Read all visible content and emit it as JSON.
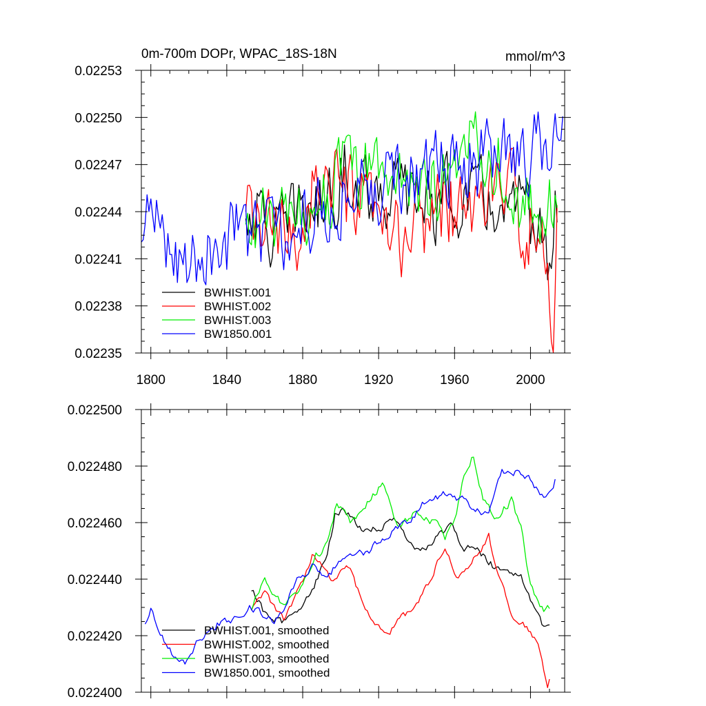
{
  "chart_data": [
    {
      "type": "line",
      "title": "0m-700m DOPr, WPAC_18S-18N",
      "units": "mmol/m^3",
      "xlim": [
        1795,
        2018
      ],
      "ylim": [
        0.02235,
        0.02253
      ],
      "x_ticks": [
        1800,
        1840,
        1880,
        1920,
        1960,
        2000
      ],
      "x_tick_labels": [
        "1800",
        "1840",
        "1880",
        "1920",
        "1960",
        "2000"
      ],
      "y_ticks": [
        0.02235,
        0.02238,
        0.02241,
        0.02244,
        0.02247,
        0.0225,
        0.02253
      ],
      "y_tick_labels": [
        "0.02235",
        "0.02238",
        "0.02241",
        "0.02244",
        "0.02247",
        "0.02250",
        "0.02253"
      ],
      "legend_position": "bottom-left",
      "series": [
        {
          "name": "BWHIST.001",
          "color": "#000000",
          "x_start": 1850,
          "x_end": 2014,
          "anchors": [
            [
              1850,
              0.02243
            ],
            [
              1852,
              0.022446
            ],
            [
              1860,
              0.02243
            ],
            [
              1870,
              0.022425
            ],
            [
              1880,
              0.022445
            ],
            [
              1890,
              0.022443
            ],
            [
              1900,
              0.022462
            ],
            [
              1905,
              0.022468
            ],
            [
              1915,
              0.022455
            ],
            [
              1930,
              0.022453
            ],
            [
              1945,
              0.022445
            ],
            [
              1960,
              0.02245
            ],
            [
              1970,
              0.02245
            ],
            [
              1985,
              0.02244
            ],
            [
              1995,
              0.022438
            ],
            [
              2005,
              0.02243
            ],
            [
              2010,
              0.0224
            ],
            [
              2014,
              0.022445
            ]
          ],
          "noise": 2.2e-05
        },
        {
          "name": "BWHIST.002",
          "color": "#ff0000",
          "x_start": 1850,
          "x_end": 2014,
          "anchors": [
            [
              1850,
              0.022432
            ],
            [
              1860,
              0.02243
            ],
            [
              1870,
              0.02242
            ],
            [
              1880,
              0.02243
            ],
            [
              1887,
              0.022465
            ],
            [
              1900,
              0.022448
            ],
            [
              1910,
              0.022445
            ],
            [
              1920,
              0.022428
            ],
            [
              1930,
              0.02242
            ],
            [
              1940,
              0.02243
            ],
            [
              1955,
              0.022448
            ],
            [
              1965,
              0.022435
            ],
            [
              1975,
              0.02245
            ],
            [
              1985,
              0.022455
            ],
            [
              1995,
              0.02244
            ],
            [
              2005,
              0.022418
            ],
            [
              2012,
              0.022365
            ],
            [
              2014,
              0.022441
            ]
          ],
          "noise": 2.4e-05
        },
        {
          "name": "BWHIST.003",
          "color": "#00ee00",
          "x_start": 1850,
          "x_end": 2014,
          "anchors": [
            [
              1850,
              0.022423
            ],
            [
              1860,
              0.022438
            ],
            [
              1870,
              0.022428
            ],
            [
              1880,
              0.022438
            ],
            [
              1895,
              0.022455
            ],
            [
              1900,
              0.022465
            ],
            [
              1910,
              0.022462
            ],
            [
              1920,
              0.02247
            ],
            [
              1930,
              0.02246
            ],
            [
              1945,
              0.022458
            ],
            [
              1960,
              0.022455
            ],
            [
              1969,
              0.022505
            ],
            [
              1975,
              0.022478
            ],
            [
              1985,
              0.02247
            ],
            [
              1995,
              0.022448
            ],
            [
              2005,
              0.02243
            ],
            [
              2014,
              0.022453
            ]
          ],
          "noise": 2.2e-05
        },
        {
          "name": "BW1850.001",
          "color": "#0000ff",
          "x_start": 1795,
          "x_end": 2017,
          "anchors": [
            [
              1795,
              0.02241
            ],
            [
              1800,
              0.02244
            ],
            [
              1810,
              0.02242
            ],
            [
              1820,
              0.022408
            ],
            [
              1830,
              0.022415
            ],
            [
              1845,
              0.022428
            ],
            [
              1860,
              0.022428
            ],
            [
              1875,
              0.02242
            ],
            [
              1885,
              0.02244
            ],
            [
              1900,
              0.02245
            ],
            [
              1915,
              0.022455
            ],
            [
              1930,
              0.02246
            ],
            [
              1945,
              0.022468
            ],
            [
              1960,
              0.02247
            ],
            [
              1975,
              0.02247
            ],
            [
              1990,
              0.022478
            ],
            [
              2005,
              0.022478
            ],
            [
              2012,
              0.02247
            ],
            [
              2017,
              0.022508
            ]
          ],
          "noise": 2.2e-05
        }
      ]
    },
    {
      "type": "line",
      "title": "",
      "xlim": [
        1795,
        2018
      ],
      "ylim": [
        0.0224,
        0.0225
      ],
      "y_ticks": [
        0.0224,
        0.02242,
        0.02244,
        0.02246,
        0.02248,
        0.0225
      ],
      "y_tick_labels": [
        "0.022400",
        "0.022420",
        "0.022440",
        "0.022460",
        "0.022480",
        "0.022500"
      ],
      "legend_position": "bottom-left",
      "series": [
        {
          "name": "BWHIST.001, smoothed",
          "color": "#000000",
          "x_start": 1853,
          "x_end": 2010,
          "anchors": [
            [
              1853,
              0.022437
            ],
            [
              1860,
              0.022428
            ],
            [
              1870,
              0.022425
            ],
            [
              1880,
              0.02243
            ],
            [
              1886,
              0.022438
            ],
            [
              1893,
              0.022448
            ],
            [
              1897,
              0.022463
            ],
            [
              1902,
              0.022464
            ],
            [
              1910,
              0.022458
            ],
            [
              1922,
              0.022458
            ],
            [
              1928,
              0.022462
            ],
            [
              1935,
              0.022453
            ],
            [
              1945,
              0.02245
            ],
            [
              1958,
              0.02246
            ],
            [
              1965,
              0.02245
            ],
            [
              1970,
              0.022452
            ],
            [
              1980,
              0.022445
            ],
            [
              1990,
              0.022443
            ],
            [
              1995,
              0.022442
            ],
            [
              2002,
              0.02243
            ],
            [
              2007,
              0.022422
            ],
            [
              2010,
              0.022424
            ]
          ],
          "noise": 1.2e-06
        },
        {
          "name": "BWHIST.002, smoothed",
          "color": "#ff0000",
          "x_start": 1853,
          "x_end": 2010,
          "anchors": [
            [
              1853,
              0.02243
            ],
            [
              1860,
              0.022435
            ],
            [
              1870,
              0.022425
            ],
            [
              1880,
              0.02244
            ],
            [
              1885,
              0.022448
            ],
            [
              1895,
              0.02244
            ],
            [
              1905,
              0.022444
            ],
            [
              1912,
              0.02243
            ],
            [
              1918,
              0.022425
            ],
            [
              1925,
              0.02242
            ],
            [
              1930,
              0.022425
            ],
            [
              1940,
              0.02243
            ],
            [
              1947,
              0.02244
            ],
            [
              1955,
              0.022452
            ],
            [
              1962,
              0.02244
            ],
            [
              1970,
              0.022448
            ],
            [
              1978,
              0.022455
            ],
            [
              1985,
              0.022438
            ],
            [
              1992,
              0.022425
            ],
            [
              2000,
              0.022422
            ],
            [
              2005,
              0.022415
            ],
            [
              2009,
              0.022403
            ],
            [
              2010,
              0.022406
            ]
          ],
          "noise": 1.2e-06
        },
        {
          "name": "BWHIST.003, smoothed",
          "color": "#00ee00",
          "x_start": 1853,
          "x_end": 2010,
          "anchors": [
            [
              1853,
              0.02243
            ],
            [
              1860,
              0.02244
            ],
            [
              1870,
              0.02243
            ],
            [
              1880,
              0.022438
            ],
            [
              1887,
              0.022448
            ],
            [
              1893,
              0.022452
            ],
            [
              1898,
              0.022467
            ],
            [
              1905,
              0.02246
            ],
            [
              1915,
              0.022468
            ],
            [
              1922,
              0.022474
            ],
            [
              1930,
              0.022458
            ],
            [
              1940,
              0.022464
            ],
            [
              1950,
              0.02246
            ],
            [
              1955,
              0.022455
            ],
            [
              1960,
              0.02246
            ],
            [
              1965,
              0.022478
            ],
            [
              1970,
              0.022484
            ],
            [
              1975,
              0.022468
            ],
            [
              1982,
              0.022462
            ],
            [
              1990,
              0.022468
            ],
            [
              1995,
              0.022458
            ],
            [
              2000,
              0.022438
            ],
            [
              2005,
              0.022431
            ],
            [
              2008,
              0.022429
            ],
            [
              2010,
              0.02243
            ]
          ],
          "noise": 1.2e-06
        },
        {
          "name": "BW1850.001, smoothed",
          "color": "#0000ff",
          "x_start": 1797,
          "x_end": 2013,
          "anchors": [
            [
              1797,
              0.022425
            ],
            [
              1800,
              0.022429
            ],
            [
              1805,
              0.02242
            ],
            [
              1812,
              0.022413
            ],
            [
              1818,
              0.02241
            ],
            [
              1825,
              0.022418
            ],
            [
              1835,
              0.022424
            ],
            [
              1845,
              0.022426
            ],
            [
              1852,
              0.02243
            ],
            [
              1858,
              0.022428
            ],
            [
              1865,
              0.022425
            ],
            [
              1870,
              0.02243
            ],
            [
              1877,
              0.02244
            ],
            [
              1885,
              0.022444
            ],
            [
              1892,
              0.02244
            ],
            [
              1898,
              0.022445
            ],
            [
              1905,
              0.022448
            ],
            [
              1915,
              0.02245
            ],
            [
              1925,
              0.022456
            ],
            [
              1935,
              0.02246
            ],
            [
              1945,
              0.022468
            ],
            [
              1955,
              0.02247
            ],
            [
              1965,
              0.022468
            ],
            [
              1970,
              0.022465
            ],
            [
              1978,
              0.022462
            ],
            [
              1985,
              0.022478
            ],
            [
              1993,
              0.022478
            ],
            [
              2000,
              0.022476
            ],
            [
              2007,
              0.022468
            ],
            [
              2013,
              0.022475
            ]
          ],
          "noise": 1.2e-06
        }
      ]
    }
  ]
}
